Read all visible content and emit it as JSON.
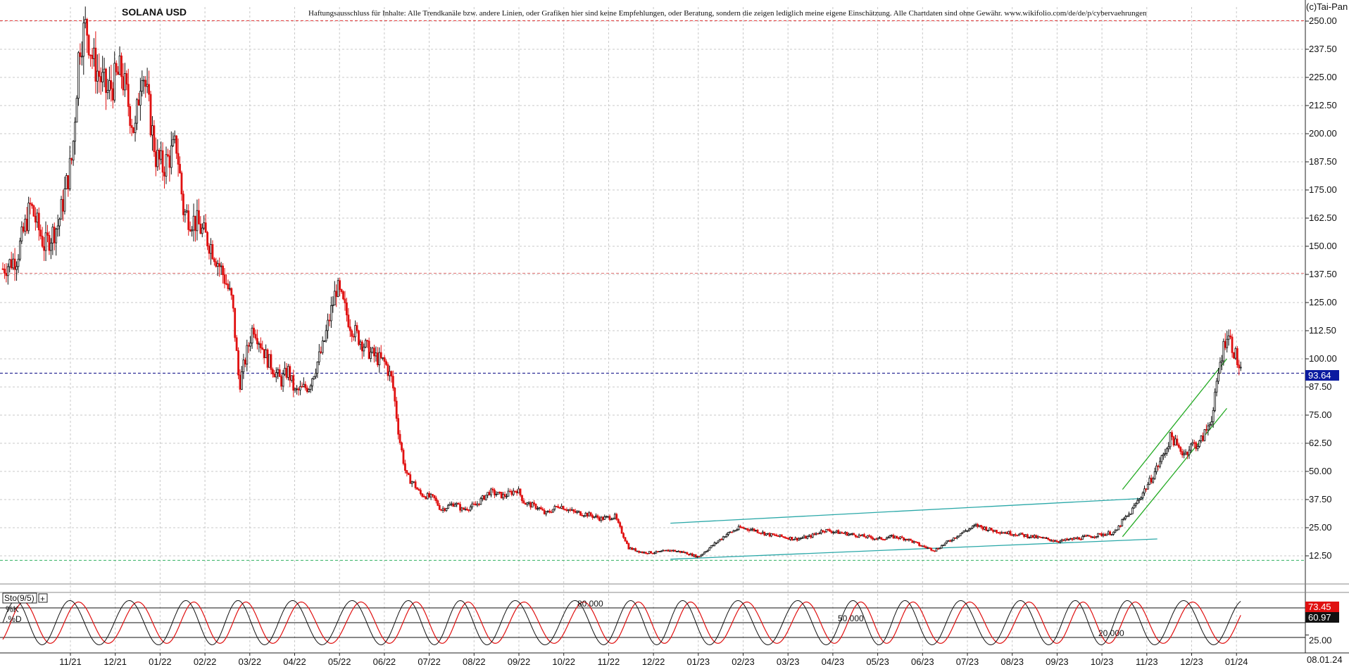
{
  "chart_data": [
    {
      "type": "candlestick",
      "title": "SOLANA USD",
      "disclaimer": "Haftungsausschluss für Inhalte: Alle Trendkanäle bzw. andere Linien, oder Grafiken hier sind keine Empfehlungen, oder Beratung, sondern die zeigen lediglich meine eigene Einschätzung. Alle Chartdaten sind ohne Gewähr.  www.wikifolio.com/de/de/p/cybervaehrungen",
      "copyright": "(c)Tai-Pan",
      "ylim": [
        0,
        256.25
      ],
      "yticks": [
        "250.00",
        "237.50",
        "225.00",
        "212.50",
        "200.00",
        "187.50",
        "175.00",
        "162.50",
        "150.00",
        "137.50",
        "125.00",
        "112.50",
        "100.00",
        "87.50",
        "75.00",
        "62.50",
        "50.00",
        "37.50",
        "25.00",
        "12.50"
      ],
      "xticks": [
        "11/21",
        "12/21",
        "01/22",
        "02/22",
        "03/22",
        "04/22",
        "05/22",
        "06/22",
        "07/22",
        "08/22",
        "09/22",
        "10/22",
        "11/22",
        "12/22",
        "01/23",
        "02/23",
        "03/23",
        "04/23",
        "05/23",
        "06/23",
        "07/23",
        "08/23",
        "09/23",
        "10/23",
        "11/23",
        "12/23",
        "01/24"
      ],
      "date_label": "08.01.24",
      "last_price": "93.64",
      "last_value": 93.64,
      "horizontal_levels": [
        250.2,
        138.0,
        93.64,
        10.5
      ],
      "price_path": [
        [
          0,
          140
        ],
        [
          2,
          145
        ],
        [
          4,
          168
        ],
        [
          6,
          150
        ],
        [
          8,
          160
        ],
        [
          10,
          190
        ],
        [
          11,
          240
        ],
        [
          12,
          248
        ],
        [
          13,
          232
        ],
        [
          15,
          218
        ],
        [
          17,
          228
        ],
        [
          19,
          200
        ],
        [
          20,
          232
        ],
        [
          22,
          190
        ],
        [
          23,
          185
        ],
        [
          25,
          195
        ],
        [
          26,
          165
        ],
        [
          28,
          160
        ],
        [
          30,
          150
        ],
        [
          32,
          135
        ],
        [
          33,
          125
        ],
        [
          34,
          88
        ],
        [
          36,
          115
        ],
        [
          38,
          100
        ],
        [
          40,
          90
        ],
        [
          41,
          95
        ],
        [
          42,
          85
        ],
        [
          44,
          88
        ],
        [
          46,
          105
        ],
        [
          48,
          132
        ],
        [
          50,
          115
        ],
        [
          51,
          110
        ],
        [
          53,
          102
        ],
        [
          55,
          98
        ],
        [
          56,
          90
        ],
        [
          57,
          65
        ],
        [
          58,
          48
        ],
        [
          59,
          45
        ],
        [
          60,
          40
        ],
        [
          62,
          38
        ],
        [
          63,
          33
        ],
        [
          65,
          36
        ],
        [
          66,
          33
        ],
        [
          68,
          35
        ],
        [
          70,
          41
        ],
        [
          72,
          39
        ],
        [
          74,
          42
        ],
        [
          75,
          36
        ],
        [
          77,
          34
        ],
        [
          78,
          31
        ],
        [
          80,
          35
        ],
        [
          82,
          32
        ],
        [
          84,
          31
        ],
        [
          86,
          29
        ],
        [
          88,
          30
        ],
        [
          89,
          23
        ],
        [
          90,
          16
        ],
        [
          92,
          14
        ],
        [
          94,
          14
        ],
        [
          96,
          15
        ],
        [
          98,
          14
        ],
        [
          100,
          12
        ],
        [
          102,
          17
        ],
        [
          104,
          22
        ],
        [
          106,
          25
        ],
        [
          108,
          24
        ],
        [
          110,
          22
        ],
        [
          112,
          21
        ],
        [
          114,
          20
        ],
        [
          116,
          21
        ],
        [
          118,
          24
        ],
        [
          120,
          23
        ],
        [
          122,
          22
        ],
        [
          124,
          21
        ],
        [
          126,
          20
        ],
        [
          128,
          21
        ],
        [
          130,
          20
        ],
        [
          132,
          17
        ],
        [
          134,
          15
        ],
        [
          136,
          19
        ],
        [
          138,
          23
        ],
        [
          140,
          26
        ],
        [
          142,
          24
        ],
        [
          144,
          23
        ],
        [
          146,
          22
        ],
        [
          148,
          21
        ],
        [
          150,
          20
        ],
        [
          152,
          19
        ],
        [
          154,
          20
        ],
        [
          156,
          21
        ],
        [
          158,
          22
        ],
        [
          160,
          23
        ],
        [
          161,
          28
        ],
        [
          162,
          31
        ],
        [
          163,
          36
        ],
        [
          164,
          41
        ],
        [
          165,
          46
        ],
        [
          166,
          52
        ],
        [
          167,
          58
        ],
        [
          168,
          66
        ],
        [
          169,
          60
        ],
        [
          170,
          58
        ],
        [
          171,
          62
        ],
        [
          172,
          62
        ],
        [
          173,
          68
        ],
        [
          174,
          76
        ],
        [
          175,
          98
        ],
        [
          176,
          112
        ],
        [
          177,
          104
        ],
        [
          178,
          93.64
        ]
      ],
      "trendlines": [
        {
          "color": "#2aa8a8",
          "from": [
            96,
            27
          ],
          "to": [
            164,
            38
          ]
        },
        {
          "color": "#2aa8a8",
          "from": [
            96,
            11
          ],
          "to": [
            166,
            20
          ]
        },
        {
          "color": "#22aa22",
          "from": [
            161,
            42
          ],
          "to": [
            176,
            100
          ]
        },
        {
          "color": "#22aa22",
          "from": [
            161,
            21
          ],
          "to": [
            176,
            78
          ]
        }
      ]
    },
    {
      "type": "line",
      "title": "Sto(9/5)",
      "legend_k": "%K",
      "legend_d": ".%D",
      "ylim": [
        0,
        100
      ],
      "yticks": [
        "25.00"
      ],
      "levels": [
        {
          "value": 80,
          "label": "80.000"
        },
        {
          "value": 50,
          "label": "50.000"
        },
        {
          "value": 20,
          "label": "20.000"
        }
      ],
      "last_k": "73.45",
      "last_d": "60.97",
      "period_bars": 8
    }
  ]
}
